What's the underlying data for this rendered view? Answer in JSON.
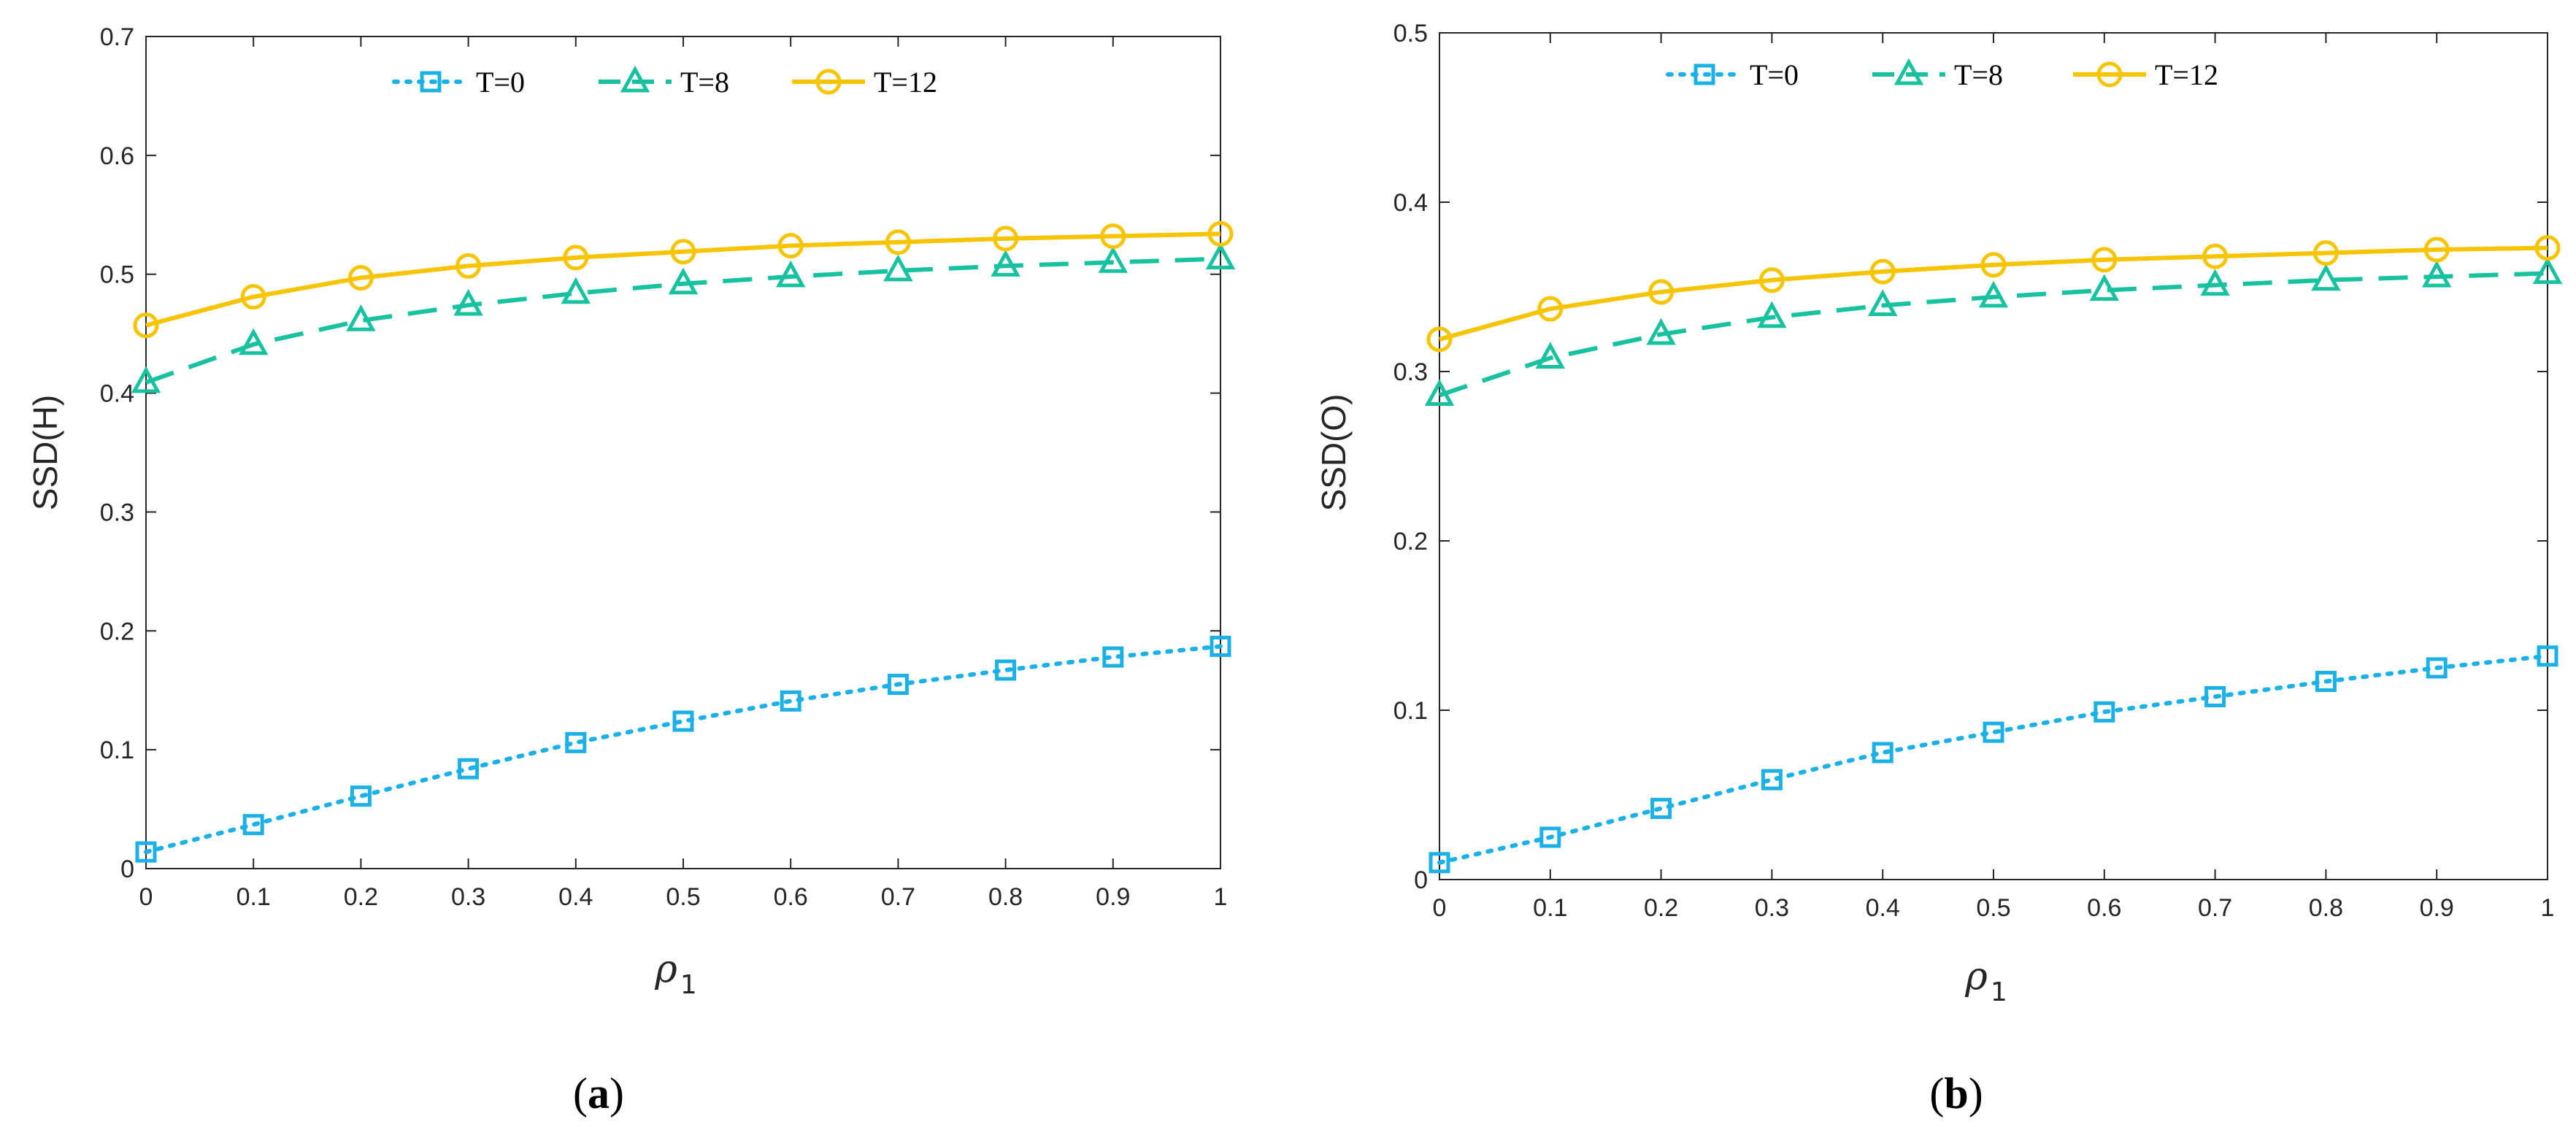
{
  "chart_data": [
    {
      "type": "line",
      "caption": "(a)",
      "caption_letter": "a",
      "ylabel": "SSD(H)",
      "xlabel": "ρ",
      "xlabel_subscript": "1",
      "xlim": [
        0,
        1
      ],
      "ylim": [
        0,
        0.7
      ],
      "xticks": [
        "0",
        "0.1",
        "0.2",
        "0.3",
        "0.4",
        "0.5",
        "0.6",
        "0.7",
        "0.8",
        "0.9",
        "1"
      ],
      "yticks": [
        "0",
        "0.1",
        "0.2",
        "0.3",
        "0.4",
        "0.5",
        "0.6",
        "0.7"
      ],
      "legend_position": "top-center",
      "x": [
        0,
        0.1,
        0.2,
        0.3,
        0.4,
        0.5,
        0.6,
        0.7,
        0.8,
        0.9,
        1.0
      ],
      "series": [
        {
          "name": "T=0",
          "style": "dotted",
          "marker": "square",
          "color": "#1BB0E6",
          "values": [
            0.014,
            0.037,
            0.061,
            0.084,
            0.106,
            0.124,
            0.141,
            0.155,
            0.167,
            0.178,
            0.187
          ]
        },
        {
          "name": "T=8",
          "style": "dashed",
          "marker": "triangle",
          "color": "#18C2A0",
          "values": [
            0.409,
            0.441,
            0.461,
            0.474,
            0.484,
            0.492,
            0.498,
            0.503,
            0.507,
            0.51,
            0.513
          ]
        },
        {
          "name": "T=12",
          "style": "solid",
          "marker": "circle",
          "color": "#F7C400",
          "values": [
            0.457,
            0.481,
            0.497,
            0.507,
            0.514,
            0.519,
            0.524,
            0.527,
            0.53,
            0.532,
            0.534
          ]
        }
      ]
    },
    {
      "type": "line",
      "caption": "(b)",
      "caption_letter": "b",
      "ylabel": "SSD(O)",
      "xlabel": "ρ",
      "xlabel_subscript": "1",
      "xlim": [
        0,
        1
      ],
      "ylim": [
        0,
        0.5
      ],
      "xticks": [
        "0",
        "0.1",
        "0.2",
        "0.3",
        "0.4",
        "0.5",
        "0.6",
        "0.7",
        "0.8",
        "0.9",
        "1"
      ],
      "yticks": [
        "0",
        "0.1",
        "0.2",
        "0.3",
        "0.4",
        "0.5"
      ],
      "legend_position": "top-center",
      "x": [
        0,
        0.1,
        0.2,
        0.3,
        0.4,
        0.5,
        0.6,
        0.7,
        0.8,
        0.9,
        1.0
      ],
      "series": [
        {
          "name": "T=0",
          "style": "dotted",
          "marker": "square",
          "color": "#1BB0E6",
          "values": [
            0.01,
            0.025,
            0.042,
            0.059,
            0.075,
            0.087,
            0.099,
            0.108,
            0.117,
            0.125,
            0.132
          ]
        },
        {
          "name": "T=8",
          "style": "dashed",
          "marker": "triangle",
          "color": "#18C2A0",
          "values": [
            0.286,
            0.308,
            0.322,
            0.332,
            0.339,
            0.344,
            0.348,
            0.351,
            0.354,
            0.356,
            0.358
          ]
        },
        {
          "name": "T=12",
          "style": "solid",
          "marker": "circle",
          "color": "#F7C400",
          "values": [
            0.319,
            0.337,
            0.347,
            0.354,
            0.359,
            0.363,
            0.366,
            0.368,
            0.37,
            0.372,
            0.373
          ]
        }
      ]
    }
  ]
}
